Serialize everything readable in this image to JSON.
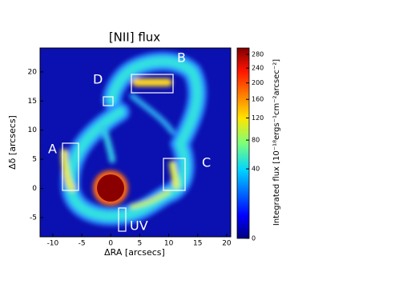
{
  "chart_data": {
    "type": "heatmap",
    "title": "[NII] flux",
    "xlabel": "ΔRA [arcsecs]",
    "ylabel": "Δδ [arcsecs]",
    "xlim": [
      -12.2,
      20.7
    ],
    "xticks": [
      -10,
      -5,
      0,
      5,
      10,
      15,
      20
    ],
    "ylim": [
      -8.3,
      24.1
    ],
    "yticks": [
      -5,
      0,
      5,
      10,
      15,
      20
    ],
    "colorbar": {
      "label": "Integrated flux [10⁻¹⁸ergs⁻¹cm⁻²arcsec⁻²]",
      "lim": [
        0,
        300
      ],
      "scale": "sqrt",
      "ticks": [
        0,
        40,
        80,
        120,
        160,
        200,
        240,
        280
      ]
    },
    "region_labels": [
      "A",
      "B",
      "C",
      "D",
      "UV"
    ]
  }
}
